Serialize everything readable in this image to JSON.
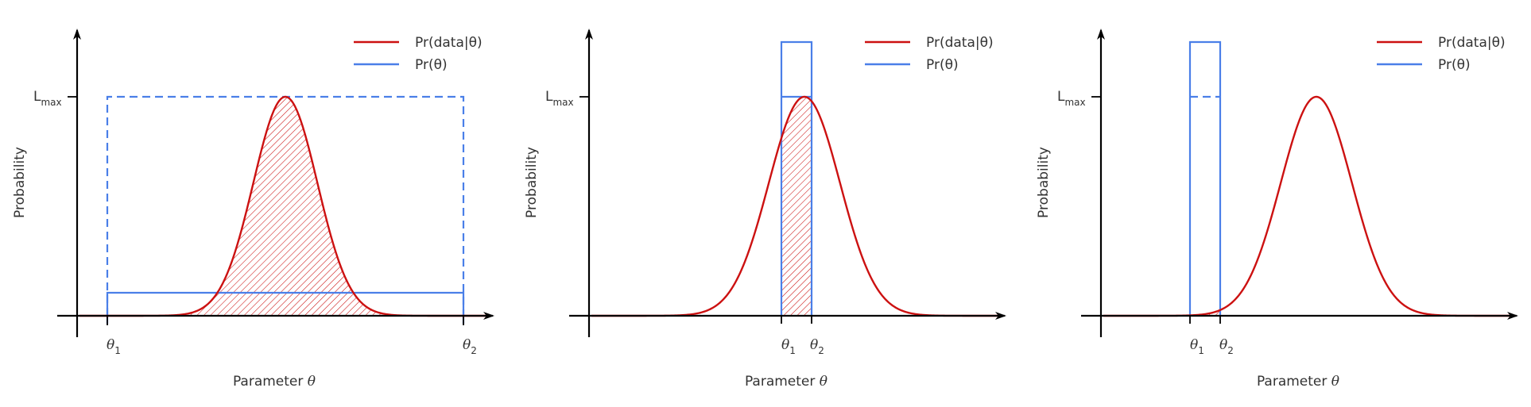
{
  "colors": {
    "likelihood": "#cc1111",
    "prior": "#4a7fe8",
    "axis": "#000000"
  },
  "panels": [
    {
      "ylabel": "Probability",
      "xlabel": "Parameter",
      "xlabel_symbol": "θ",
      "lmax_label": "L",
      "lmax_sub": "max",
      "theta1_label": "θ",
      "theta1_sub": "1",
      "theta2_label": "θ",
      "theta2_sub": "2",
      "legend": [
        {
          "text": "Pr(data|θ)",
          "color": "#cc1111"
        },
        {
          "text": "Pr(θ)",
          "color": "#4a7fe8"
        }
      ],
      "gaussian": {
        "mean": 0.5,
        "sigma": 0.09
      },
      "prior_range": [
        0.0,
        1.0
      ],
      "prior_height": 0.105,
      "prior_box_top": 1.0,
      "prior_box_style": "dashed"
    },
    {
      "ylabel": "Probability",
      "xlabel": "Parameter",
      "xlabel_symbol": "θ",
      "lmax_label": "L",
      "lmax_sub": "max",
      "theta1_label": "θ",
      "theta1_sub": "1",
      "theta2_label": "θ",
      "theta2_sub": "2",
      "legend": [
        {
          "text": "Pr(data|θ)",
          "color": "#cc1111"
        },
        {
          "text": "Pr(θ)",
          "color": "#4a7fe8"
        }
      ],
      "gaussian": {
        "mean": 0.52,
        "sigma": 0.1
      },
      "prior_range": [
        0.44,
        0.52
      ],
      "prior_height": 1.25,
      "prior_box_top": 1.0,
      "prior_box_style": "solid"
    },
    {
      "ylabel": "Probability",
      "xlabel": "Parameter",
      "xlabel_symbol": "θ",
      "lmax_label": "L",
      "lmax_sub": "max",
      "theta1_label": "θ",
      "theta1_sub": "1",
      "theta2_label": "θ",
      "theta2_sub": "2",
      "legend": [
        {
          "text": "Pr(data|θ)",
          "color": "#cc1111"
        },
        {
          "text": "Pr(θ)",
          "color": "#4a7fe8"
        }
      ],
      "gaussian": {
        "mean": 0.52,
        "sigma": 0.1
      },
      "prior_range": [
        0.24,
        0.32
      ],
      "prior_height": 1.25,
      "prior_box_top": 1.0,
      "prior_box_style": "dash-line"
    }
  ]
}
